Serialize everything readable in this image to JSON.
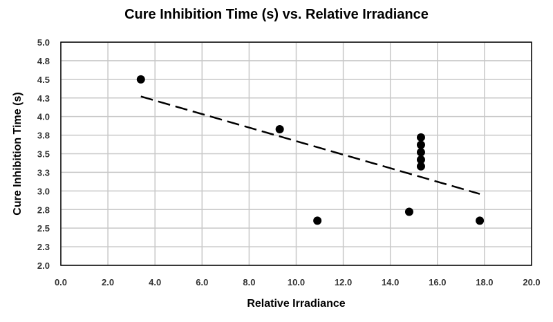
{
  "chart_data": {
    "type": "scatter",
    "title": "Cure Inhibition Time (s) vs. Relative Irradiance",
    "xlabel": "Relative Irradiance",
    "ylabel": "Cure Inhibition Time (s)",
    "xlim": [
      0,
      20
    ],
    "ylim": [
      2.0,
      5.0
    ],
    "x_ticks": [
      {
        "value": 0,
        "label": "0.0"
      },
      {
        "value": 2,
        "label": "2.0"
      },
      {
        "value": 4,
        "label": "4.0"
      },
      {
        "value": 6,
        "label": "6.0"
      },
      {
        "value": 8,
        "label": "8.0"
      },
      {
        "value": 10,
        "label": "10.0"
      },
      {
        "value": 12,
        "label": "12.0"
      },
      {
        "value": 14,
        "label": "14.0"
      },
      {
        "value": 16,
        "label": "16.0"
      },
      {
        "value": 18,
        "label": "18.0"
      },
      {
        "value": 20,
        "label": "20.0"
      }
    ],
    "y_ticks": [
      {
        "value": 2.0,
        "label": "2.0"
      },
      {
        "value": 2.25,
        "label": "2.3"
      },
      {
        "value": 2.5,
        "label": "2.5"
      },
      {
        "value": 2.75,
        "label": "2.8"
      },
      {
        "value": 3.0,
        "label": "3.0"
      },
      {
        "value": 3.25,
        "label": "3.3"
      },
      {
        "value": 3.5,
        "label": "3.5"
      },
      {
        "value": 3.75,
        "label": "3.8"
      },
      {
        "value": 4.0,
        "label": "4.0"
      },
      {
        "value": 4.25,
        "label": "4.3"
      },
      {
        "value": 4.5,
        "label": "4.5"
      },
      {
        "value": 4.75,
        "label": "4.8"
      },
      {
        "value": 5.0,
        "label": "5.0"
      }
    ],
    "grid": true,
    "legend": "none",
    "points": [
      {
        "x": 3.4,
        "y": 4.5
      },
      {
        "x": 9.3,
        "y": 3.83
      },
      {
        "x": 10.9,
        "y": 2.6
      },
      {
        "x": 14.8,
        "y": 2.72
      },
      {
        "x": 15.3,
        "y": 3.33
      },
      {
        "x": 15.3,
        "y": 3.42
      },
      {
        "x": 15.3,
        "y": 3.52
      },
      {
        "x": 15.3,
        "y": 3.62
      },
      {
        "x": 15.3,
        "y": 3.72
      },
      {
        "x": 17.8,
        "y": 2.6
      }
    ],
    "trendline": {
      "style": "dashed",
      "x": [
        3.4,
        17.8
      ],
      "y": [
        4.27,
        2.96
      ]
    },
    "colors": {
      "points": "#000000",
      "trendline": "#000000",
      "grid": "#c8c8c8",
      "axis_border": "#000000"
    }
  }
}
